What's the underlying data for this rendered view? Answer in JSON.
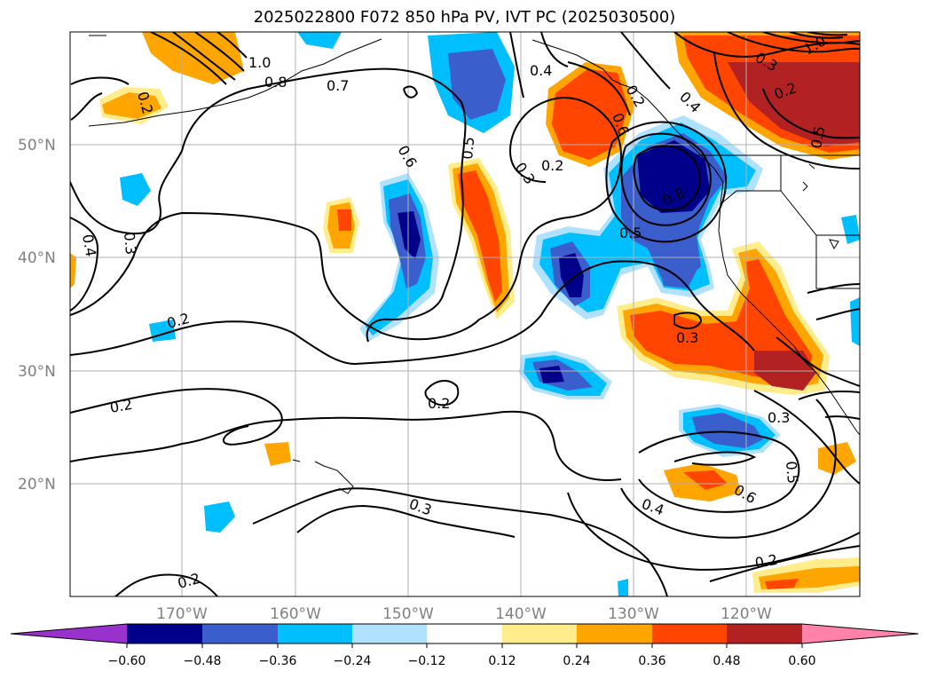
{
  "title": "2025022800 F072 850 hPa PV, IVT PC (2025030500)",
  "lat_labels": [
    "50°N",
    "40°N",
    "30°N",
    "20°N"
  ],
  "lon_labels": [
    "170°W",
    "160°W",
    "150°W",
    "140°W",
    "130°W",
    "120°W"
  ],
  "colorbar": {
    "colors": [
      "#9932cc",
      "#00008b",
      "#3a5fcd",
      "#00bfff",
      "#b0e2ff",
      "#ffffff",
      "#ffec8b",
      "#ffa500",
      "#ff4500",
      "#b22222",
      "#ff82ab"
    ],
    "ticks": [
      "−0.60",
      "−0.48",
      "−0.36",
      "−0.24",
      "−0.12",
      "0.12",
      "0.24",
      "0.36",
      "0.48",
      "0.60"
    ]
  },
  "contour_labels": [
    "1.0",
    "0.8",
    "0.7",
    "0.2",
    "0.6",
    "0.5",
    "0.4",
    "0.3",
    "0.2",
    "0.4",
    "0.6",
    "0.2",
    "0.5",
    "0.8",
    "0.3",
    "0.2",
    "0.2",
    "0.2",
    "0.3",
    "0.3",
    "0.4",
    "0.6",
    "0.5",
    "0.2",
    "0.2",
    "0.4",
    "0.3",
    "0.2",
    "0.5",
    "0.3",
    "1.0"
  ]
}
